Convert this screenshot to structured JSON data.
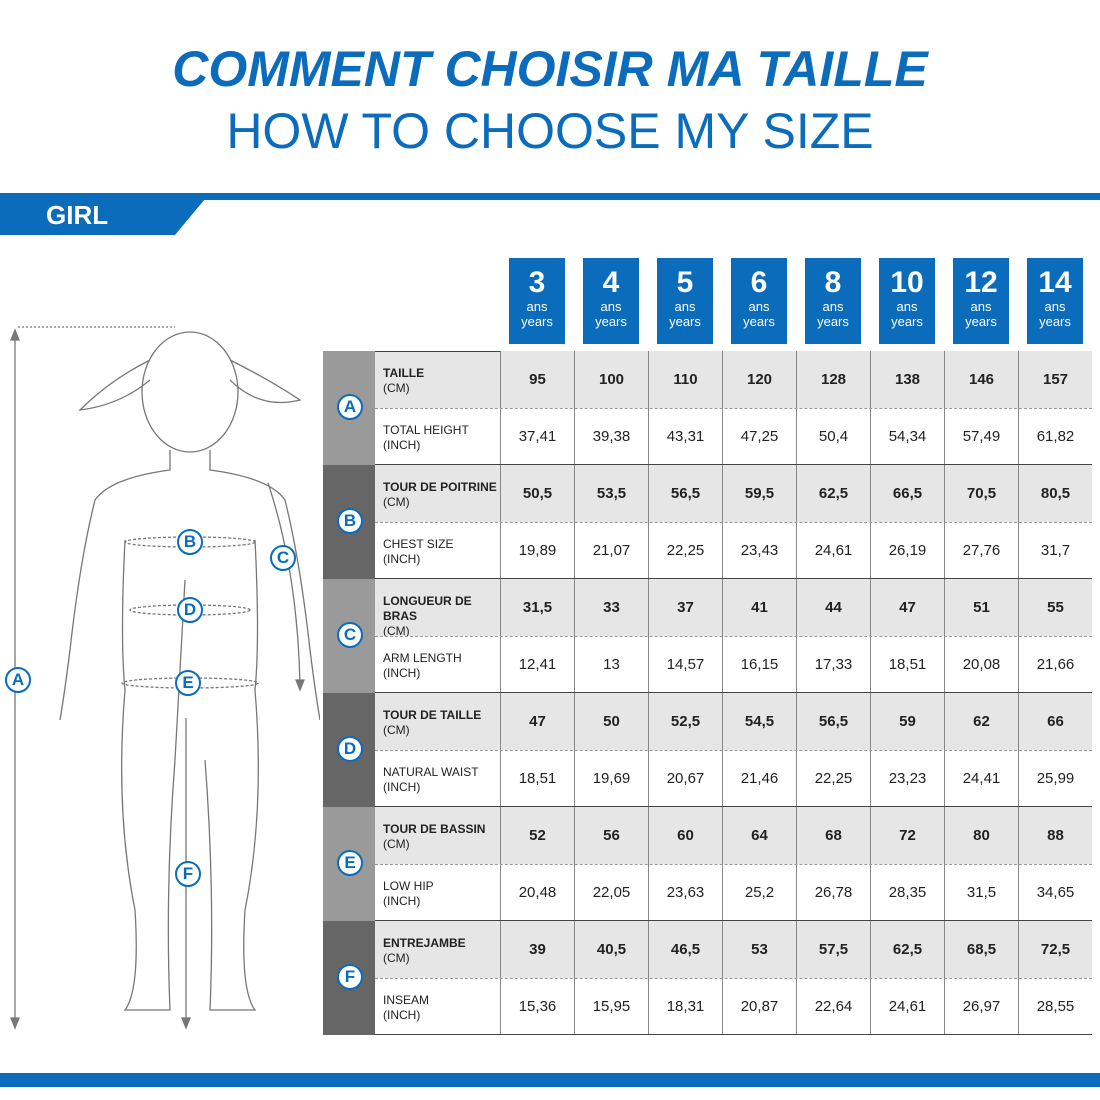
{
  "title_fr": "COMMENT CHOISIR MA TAILLE",
  "title_en": "HOW TO CHOOSE MY SIZE",
  "section": "GIRL",
  "colors": {
    "accent": "#0b6cbb"
  },
  "sizes": [
    {
      "n": "3",
      "fr": "ans",
      "en": "years"
    },
    {
      "n": "4",
      "fr": "ans",
      "en": "years"
    },
    {
      "n": "5",
      "fr": "ans",
      "en": "years"
    },
    {
      "n": "6",
      "fr": "ans",
      "en": "years"
    },
    {
      "n": "8",
      "fr": "ans",
      "en": "years"
    },
    {
      "n": "10",
      "fr": "ans",
      "en": "years"
    },
    {
      "n": "12",
      "fr": "ans",
      "en": "years"
    },
    {
      "n": "14",
      "fr": "ans",
      "en": "years"
    }
  ],
  "rows": [
    {
      "letter": "A",
      "cm_label": "TAILLE",
      "cm_unit": "(CM)",
      "cm": [
        "95",
        "100",
        "110",
        "120",
        "128",
        "138",
        "146",
        "157"
      ],
      "in_label": "TOTAL HEIGHT",
      "in_unit": "(INCH)",
      "inch": [
        "37,41",
        "39,38",
        "43,31",
        "47,25",
        "50,4",
        "54,34",
        "57,49",
        "61,82"
      ]
    },
    {
      "letter": "B",
      "cm_label": "TOUR DE POITRINE",
      "cm_unit": "(CM)",
      "cm": [
        "50,5",
        "53,5",
        "56,5",
        "59,5",
        "62,5",
        "66,5",
        "70,5",
        "80,5"
      ],
      "in_label": "CHEST SIZE",
      "in_unit": "(INCH)",
      "inch": [
        "19,89",
        "21,07",
        "22,25",
        "23,43",
        "24,61",
        "26,19",
        "27,76",
        "31,7"
      ]
    },
    {
      "letter": "C",
      "cm_label": "LONGUEUR DE BRAS",
      "cm_unit": "(CM)",
      "cm": [
        "31,5",
        "33",
        "37",
        "41",
        "44",
        "47",
        "51",
        "55"
      ],
      "in_label": "ARM LENGTH",
      "in_unit": "(INCH)",
      "inch": [
        "12,41",
        "13",
        "14,57",
        "16,15",
        "17,33",
        "18,51",
        "20,08",
        "21,66"
      ]
    },
    {
      "letter": "D",
      "cm_label": "TOUR DE TAILLE",
      "cm_unit": "(CM)",
      "cm": [
        "47",
        "50",
        "52,5",
        "54,5",
        "56,5",
        "59",
        "62",
        "66"
      ],
      "in_label": "NATURAL WAIST",
      "in_unit": "(INCH)",
      "inch": [
        "18,51",
        "19,69",
        "20,67",
        "21,46",
        "22,25",
        "23,23",
        "24,41",
        "25,99"
      ]
    },
    {
      "letter": "E",
      "cm_label": "TOUR DE BASSIN",
      "cm_unit": "(CM)",
      "cm": [
        "52",
        "56",
        "60",
        "64",
        "68",
        "72",
        "80",
        "88"
      ],
      "in_label": "LOW HIP",
      "in_unit": "(INCH)",
      "inch": [
        "20,48",
        "22,05",
        "23,63",
        "25,2",
        "26,78",
        "28,35",
        "31,5",
        "34,65"
      ]
    },
    {
      "letter": "F",
      "cm_label": "ENTREJAMBE",
      "cm_unit": "(CM)",
      "cm": [
        "39",
        "40,5",
        "46,5",
        "53",
        "57,5",
        "62,5",
        "68,5",
        "72,5"
      ],
      "in_label": "INSEAM",
      "in_unit": "(INCH)",
      "inch": [
        "15,36",
        "15,95",
        "18,31",
        "20,87",
        "22,64",
        "24,61",
        "26,97",
        "28,55"
      ]
    }
  ],
  "figure_letters": [
    "A",
    "B",
    "C",
    "D",
    "E",
    "F"
  ]
}
